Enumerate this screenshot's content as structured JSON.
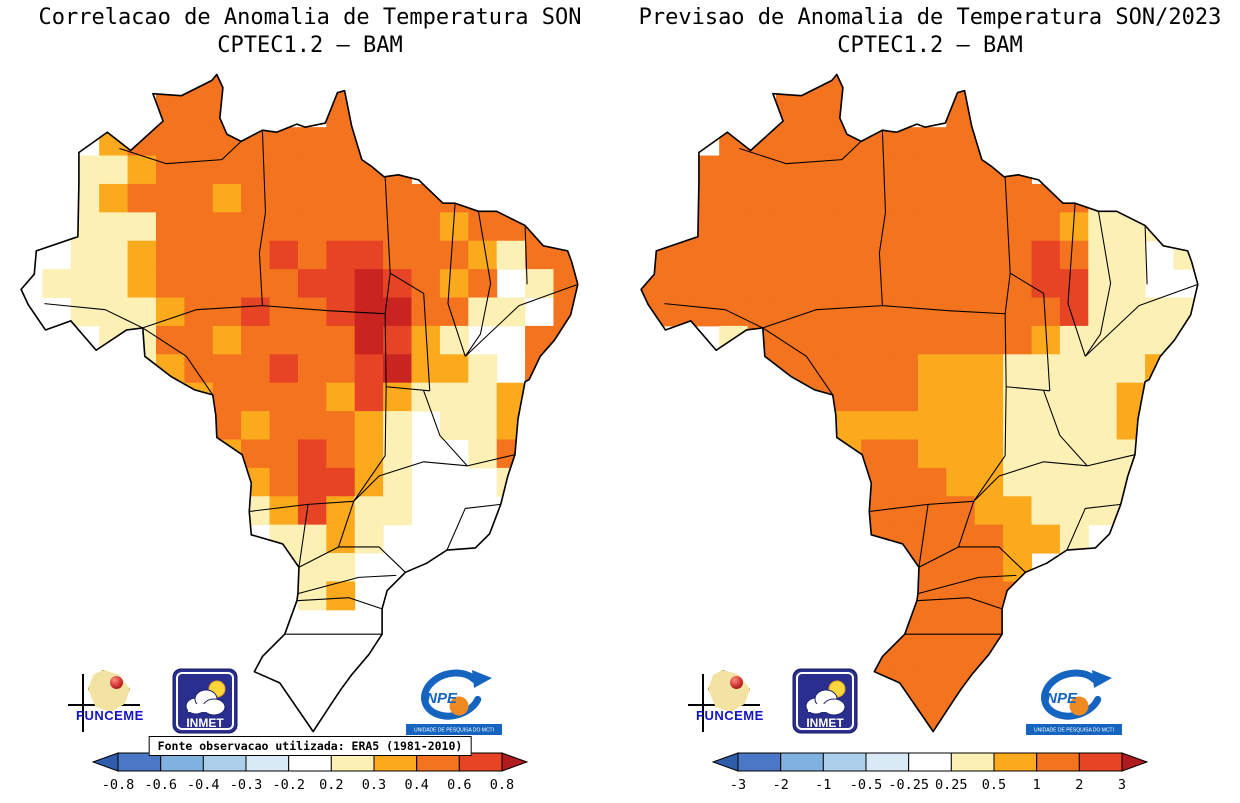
{
  "palette": {
    "W": "#ffffff",
    "P": "#fdf0b5",
    "G": "#fba91d",
    "O": "#f4731f",
    "R": "#e64424",
    "D": "#ca2421"
  },
  "logos": {
    "funceme": {
      "label": "FUNCEME"
    },
    "inmet": {
      "label": "INMET"
    },
    "inpe": {
      "label": "INPE",
      "sub": "UNIDADE DE PESQUISA DO MCTI"
    }
  },
  "chart_data": [
    {
      "type": "heatmap",
      "title": "Correlacao de Anomalia de Temperatura SON",
      "subtitle": "CPTEC1.2 — BAM",
      "region": "Brazil",
      "source": "Fonte observacao utilizada: ERA5 (1981-2010)",
      "legend_position": "bottom",
      "colorbar_ticks": [
        "-0.8",
        "-0.6",
        "-0.4",
        "-0.3",
        "-0.2",
        "0.2",
        "0.3",
        "0.4",
        "0.6",
        "0.8"
      ],
      "colorbar_colors": [
        "#4a78c4",
        "#7fb2de",
        "#abcfeb",
        "#d8eaf6",
        "#ffffff",
        "#fdf0b5",
        "#fba91d",
        "#f4731f",
        "#e64424"
      ],
      "arrow_left": "#2f5cab",
      "arrow_right": "#b01b20",
      "value_legend": {
        "W": "-0.2 to 0.2",
        "P": "0.2 to 0.3",
        "G": "0.3 to 0.4",
        "O": "0.4 to 0.6",
        "R": "0.6 to 0.8",
        "D": "above 0.8"
      },
      "grid": [
        "WWWWWOOOWWWOWWWWWWWWW",
        "WWWWGOOOGWWOOWWWWWWWW",
        "WWWGOOOOOOOOOWWWWWWWW",
        "WPPPGOOOOOOOOOWWWWWWW",
        "WPPGOOOGOOOOOOOOOGWWW",
        "WWPPPOOOOOOOOOOGOOOGW",
        "WWPPGOOOORORROOOGPOOO",
        "WPPPGOOOOORRDROGOWPOO",
        "WWPPPGOOROORDDOOPPWOO",
        "WWWPPOOGOOOODRGPWWOOW",
        "WWWWPGOOOROORDGGPWOOW",
        "WWWWPPGOOOOGRGPPPGOWW",
        "WWWWWPGOGOOOGPWPPGOWW",
        "WWWWWWPGOOROGPWWPOOWW",
        "WWWWWWWPGORRGPWWWPOWW",
        "WWWWWWWWPGRGPPWWWWWWW",
        "WWWWWWWWWPPGPWWWWWWWW",
        "WWWWWWWWWPPPWWWWWWWWW",
        "WWWWWWWWWWPGWWWWWWWWW",
        "WWWWWWWWWWWWWWWWWWWWW",
        "WWWWWWWWWWWWWWWWWWWWW",
        "WWWWWWWWWWWWWWWWWWWWW",
        "WWWWWWWWWWWWWWWWWWWWW",
        "WWWWWWWWWWWWWWWWWWWWW"
      ]
    },
    {
      "type": "heatmap",
      "title": "Previsao de Anomalia de Temperatura SON/2023",
      "subtitle": "CPTEC1.2 — BAM",
      "region": "Brazil",
      "legend_position": "bottom",
      "colorbar_ticks": [
        "-3",
        "-2",
        "-1",
        "-0.5",
        "-0.25",
        "0.25",
        "0.5",
        "1",
        "2",
        "3"
      ],
      "colorbar_colors": [
        "#4a78c4",
        "#7fb2de",
        "#abcfeb",
        "#d8eaf6",
        "#ffffff",
        "#fdf0b5",
        "#fba91d",
        "#f4731f",
        "#e64424"
      ],
      "arrow_left": "#2f5cab",
      "arrow_right": "#b01b20",
      "value_legend": {
        "W": "-0.25 to 0.25",
        "P": "0.25 to 0.5",
        "G": "0.5 to 1",
        "O": "1 to 2",
        "R": "2 to 3",
        "D": "above 3"
      },
      "grid": [
        "WWWWWOOOWWWOWWWWWWWWW",
        "WWWWOOOOOWWOOWWWWWWWW",
        "WWWOOOOOOOOOOWWWWWWWW",
        "WOOOOOOOOOOOOOWWWWWWW",
        "WOOOOOOOOOOOOOOOPPPWW",
        "WOOOOOOOOOOOOOOGPPPPW",
        "OOOOOOOOOOOOOOROPPWPP",
        "OOOOOOOOOOOOOORRPPWWP",
        "OOOOOOOOOOOOOOORPPPPW",
        "WWWPOOOOOOOOOOGPPPPPW",
        "WWWWOOOOOOGGGPPPPPGWW",
        "WWWWWOOOOOGGGPPPPGPWW",
        "WWWWWPGGGGGGGPPPPGPWW",
        "WWWWWWGGOOGGGPPPPPWWW",
        "WWWWWWWGOOOGGPPPPPWWW",
        "WWWWWWWWOOOOGGPPPPWWW",
        "WWWWWWWWOOOOOGGPWWWWW",
        "WWWWWWWWWOOOOGWWWWWWW",
        "WWWWWWWWWOOOOOWWWWWWW",
        "WWWWWWWWOOOOOOWWWWWWW",
        "WWWWWWWWOOOOOWWWWWWWW",
        "WWWWWWWWOOOOOWWWWWWWW",
        "WWWWWWWWWOOOOWWWWWWWW",
        "WWWWWWWWWOOOWWWWWWWWW"
      ]
    }
  ]
}
